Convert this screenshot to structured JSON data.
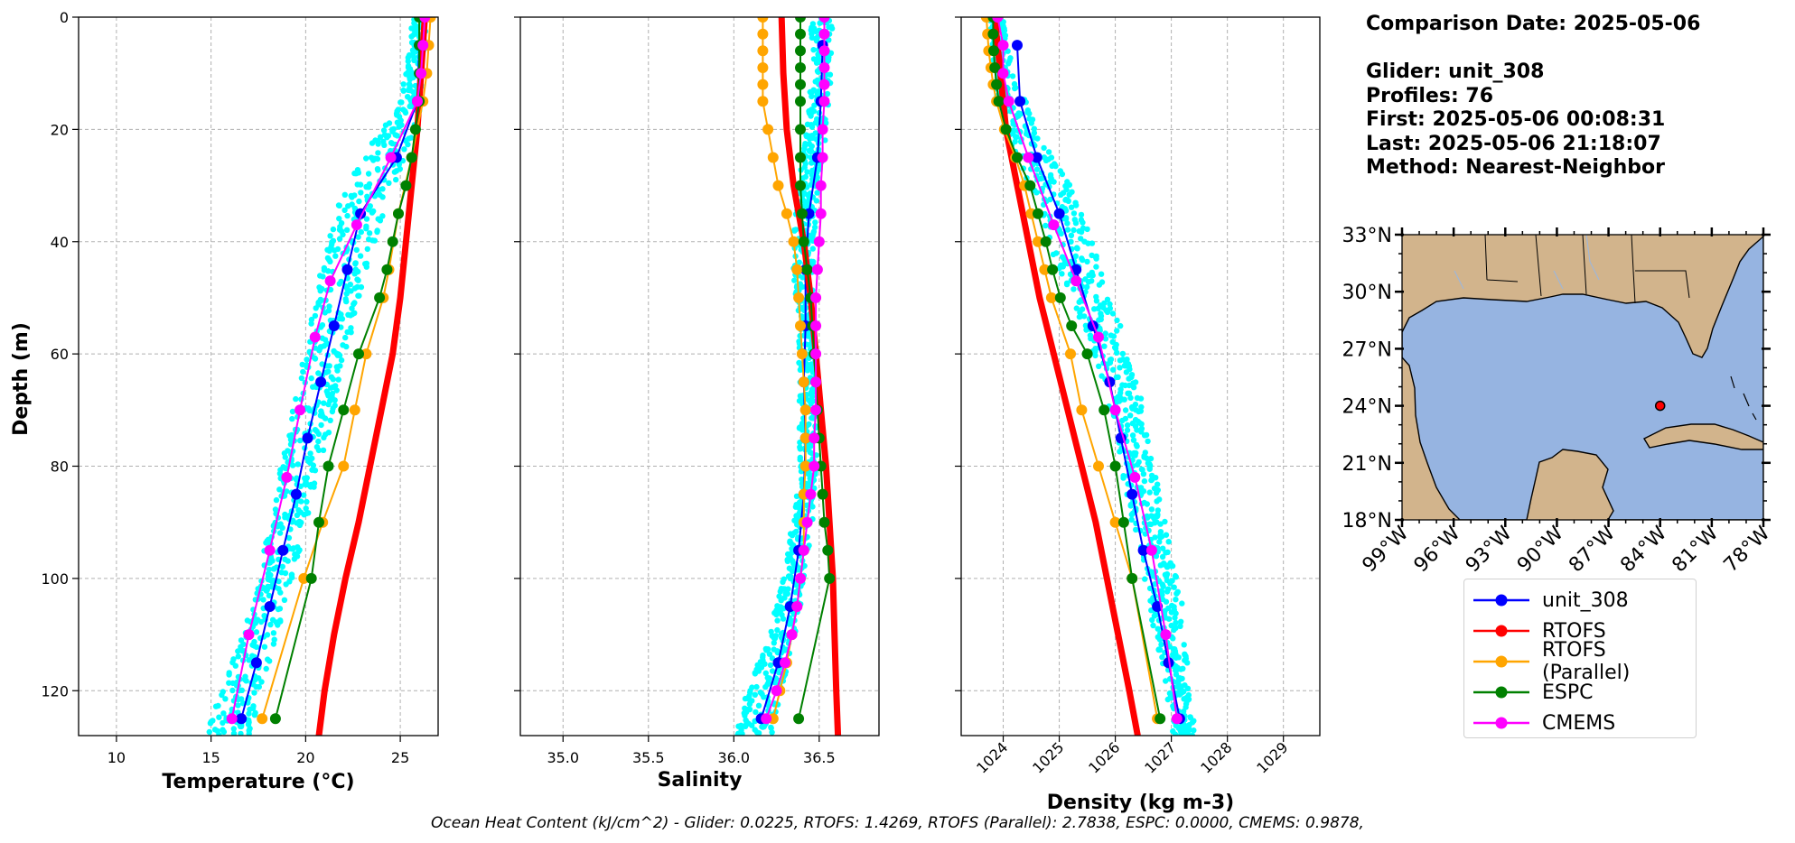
{
  "info": {
    "comparison": "Comparison Date: 2025-05-06",
    "glider": "Glider: unit_308",
    "profiles": "Profiles: 76",
    "first": "First: 2025-05-06 00:08:31",
    "last": "Last: 2025-05-06 21:18:07",
    "method": "Method: Nearest-Neighbor"
  },
  "footer": "Ocean Heat Content (kJ/cm^2) - Glider: 0.0225,  RTOFS: 1.4269,  RTOFS (Parallel): 2.7838,  ESPC: 0.0000,  CMEMS: 0.9878,",
  "colors": {
    "glider": "#0000ff",
    "rtofs": "#ff0000",
    "rtofs_parallel": "#ffa500",
    "espc": "#008000",
    "cmems": "#ff00ff",
    "scatter": "#00ffff",
    "land": "#d2b48c",
    "water": "#96b4e1",
    "grid": "#b0b0b0"
  },
  "legend": [
    {
      "label": "unit_308",
      "color": "#0000ff"
    },
    {
      "label": "RTOFS",
      "color": "#ff0000"
    },
    {
      "label": "RTOFS (Parallel)",
      "color": "#ffa500"
    },
    {
      "label": "ESPC",
      "color": "#008000"
    },
    {
      "label": "CMEMS",
      "color": "#ff00ff"
    }
  ],
  "chart_data": [
    {
      "type": "line",
      "title": "",
      "xlabel": "Temperature (°C)",
      "ylabel": "Depth (m)",
      "xlim": [
        8,
        27
      ],
      "ylim": [
        128,
        0
      ],
      "xticks": [
        10,
        15,
        20,
        25
      ],
      "yticks": [
        0,
        20,
        40,
        60,
        80,
        100,
        120
      ],
      "scatter": {
        "name": "glider raw",
        "color": "#00ffff",
        "depth": [
          0,
          5,
          10,
          15,
          20,
          25,
          30,
          35,
          40,
          45,
          50,
          55,
          60,
          65,
          70,
          75,
          80,
          85,
          90,
          95,
          100,
          105,
          110,
          115,
          120,
          125,
          128
        ],
        "min": [
          25.6,
          25.5,
          25.3,
          24.9,
          24.0,
          23.0,
          22.2,
          21.5,
          21.1,
          20.8,
          20.5,
          20.2,
          19.9,
          19.6,
          19.3,
          19.0,
          18.7,
          18.4,
          18.1,
          17.8,
          17.5,
          17.1,
          16.6,
          16.1,
          15.6,
          15.0,
          14.8
        ],
        "max": [
          26.4,
          26.3,
          26.2,
          26.1,
          25.9,
          25.3,
          24.8,
          24.2,
          23.7,
          23.3,
          22.9,
          22.5,
          22.1,
          21.8,
          21.5,
          21.2,
          20.8,
          20.4,
          20.1,
          19.7,
          19.3,
          18.9,
          18.5,
          18.1,
          17.7,
          17.3,
          17.1
        ]
      },
      "series": [
        {
          "name": "unit_308",
          "color": "#0000ff",
          "marker": true,
          "depth": [
            5,
            15,
            25,
            35,
            45,
            55,
            65,
            75,
            85,
            95,
            105,
            115,
            125
          ],
          "values": [
            26.0,
            25.9,
            24.8,
            22.9,
            22.2,
            21.5,
            20.8,
            20.1,
            19.5,
            18.8,
            18.1,
            17.4,
            16.6
          ]
        },
        {
          "name": "RTOFS",
          "color": "#ff0000",
          "marker": false,
          "width": 7,
          "depth": [
            0,
            10,
            20,
            30,
            40,
            50,
            60,
            70,
            80,
            90,
            100,
            110,
            120,
            128
          ],
          "values": [
            26.3,
            26.1,
            25.9,
            25.6,
            25.3,
            25.0,
            24.6,
            24.0,
            23.4,
            22.8,
            22.1,
            21.5,
            21.0,
            20.7
          ]
        },
        {
          "name": "RTOFS (Parallel)",
          "color": "#ffa500",
          "marker": true,
          "depth": [
            0,
            5,
            10,
            15,
            25,
            35,
            45,
            50,
            60,
            70,
            80,
            90,
            100,
            125
          ],
          "values": [
            26.6,
            26.5,
            26.4,
            26.2,
            25.6,
            24.9,
            24.4,
            24.1,
            23.2,
            22.6,
            22.0,
            20.9,
            19.9,
            17.7
          ]
        },
        {
          "name": "ESPC",
          "color": "#008000",
          "marker": true,
          "depth": [
            0,
            5,
            10,
            15,
            20,
            25,
            30,
            35,
            40,
            45,
            50,
            60,
            70,
            80,
            90,
            100,
            125
          ],
          "values": [
            26.0,
            26.0,
            26.0,
            26.0,
            25.8,
            25.6,
            25.3,
            24.9,
            24.6,
            24.3,
            23.9,
            22.8,
            22.0,
            21.2,
            20.7,
            20.3,
            18.4
          ]
        },
        {
          "name": "CMEMS",
          "color": "#ff00ff",
          "marker": true,
          "depth": [
            0,
            5,
            10,
            15,
            25,
            37,
            47,
            57,
            70,
            82,
            95,
            110,
            125
          ],
          "values": [
            26.3,
            26.2,
            26.1,
            25.9,
            24.5,
            22.7,
            21.3,
            20.5,
            19.7,
            19.0,
            18.1,
            17.0,
            16.1
          ]
        }
      ]
    },
    {
      "type": "line",
      "title": "",
      "xlabel": "Salinity",
      "ylabel": "",
      "xlim": [
        34.75,
        36.85
      ],
      "ylim": [
        128,
        0
      ],
      "xticks": [
        35.0,
        35.5,
        36.0,
        36.5
      ],
      "yticks": [
        0,
        20,
        40,
        60,
        80,
        100,
        120
      ],
      "scatter": {
        "name": "glider raw",
        "color": "#00ffff",
        "depth": [
          0,
          5,
          10,
          15,
          20,
          25,
          30,
          35,
          40,
          45,
          50,
          55,
          60,
          65,
          70,
          75,
          80,
          85,
          90,
          95,
          100,
          105,
          110,
          115,
          120,
          125,
          128
        ],
        "min": [
          36.45,
          36.45,
          36.46,
          36.44,
          36.42,
          36.4,
          36.38,
          36.36,
          36.35,
          36.35,
          36.36,
          36.37,
          36.38,
          36.38,
          36.38,
          36.38,
          36.38,
          36.36,
          36.34,
          36.32,
          36.28,
          36.24,
          36.2,
          36.14,
          36.08,
          36.02,
          36.0
        ],
        "max": [
          36.58,
          36.58,
          36.57,
          36.56,
          36.55,
          36.53,
          36.5,
          36.48,
          36.47,
          36.47,
          36.47,
          36.47,
          36.48,
          36.48,
          36.49,
          36.49,
          36.48,
          36.47,
          36.46,
          36.44,
          36.41,
          36.39,
          36.36,
          36.32,
          36.28,
          36.24,
          36.22
        ]
      },
      "series": [
        {
          "name": "unit_308",
          "color": "#0000ff",
          "marker": true,
          "depth": [
            5,
            15,
            25,
            35,
            45,
            55,
            65,
            75,
            85,
            95,
            105,
            115,
            125
          ],
          "values": [
            36.52,
            36.51,
            36.49,
            36.44,
            36.42,
            36.42,
            36.41,
            36.42,
            36.41,
            36.38,
            36.33,
            36.26,
            36.16
          ]
        },
        {
          "name": "RTOFS",
          "color": "#ff0000",
          "marker": false,
          "width": 7,
          "depth": [
            0,
            10,
            20,
            30,
            40,
            50,
            60,
            70,
            80,
            90,
            100,
            110,
            120,
            128
          ],
          "values": [
            36.28,
            36.29,
            36.31,
            36.35,
            36.41,
            36.45,
            36.48,
            36.51,
            36.54,
            36.56,
            36.58,
            36.59,
            36.6,
            36.61
          ]
        },
        {
          "name": "RTOFS (Parallel)",
          "color": "#ffa500",
          "marker": true,
          "depth": [
            0,
            3,
            6,
            9,
            12,
            15,
            20,
            25,
            30,
            35,
            40,
            45,
            50,
            55,
            60,
            65,
            70,
            75,
            80,
            85,
            90,
            95,
            100,
            105,
            110,
            115,
            120,
            125
          ],
          "values": [
            36.17,
            36.17,
            36.17,
            36.17,
            36.17,
            36.17,
            36.2,
            36.23,
            36.26,
            36.31,
            36.35,
            36.37,
            36.38,
            36.39,
            36.4,
            36.41,
            36.42,
            36.42,
            36.42,
            36.41,
            36.41,
            36.41,
            36.39,
            36.37,
            36.34,
            36.31,
            36.27,
            36.23
          ]
        },
        {
          "name": "ESPC",
          "color": "#008000",
          "marker": true,
          "depth": [
            0,
            3,
            6,
            9,
            12,
            15,
            20,
            25,
            30,
            35,
            40,
            45,
            50,
            55,
            60,
            65,
            70,
            75,
            80,
            85,
            90,
            95,
            100,
            125
          ],
          "values": [
            36.39,
            36.39,
            36.39,
            36.39,
            36.39,
            36.39,
            36.39,
            36.39,
            36.39,
            36.4,
            36.41,
            36.43,
            36.45,
            36.46,
            36.47,
            36.48,
            36.49,
            36.5,
            36.51,
            36.52,
            36.53,
            36.55,
            36.56,
            36.38
          ]
        },
        {
          "name": "CMEMS",
          "color": "#ff00ff",
          "marker": true,
          "depth": [
            0,
            3,
            6,
            9,
            12,
            15,
            20,
            25,
            30,
            35,
            40,
            45,
            50,
            55,
            60,
            65,
            70,
            75,
            80,
            85,
            90,
            95,
            100,
            105,
            110,
            115,
            120,
            125
          ],
          "values": [
            36.53,
            36.53,
            36.53,
            36.53,
            36.53,
            36.53,
            36.52,
            36.52,
            36.51,
            36.51,
            36.5,
            36.49,
            36.48,
            36.48,
            36.48,
            36.48,
            36.48,
            36.47,
            36.47,
            36.45,
            36.43,
            36.41,
            36.39,
            36.37,
            36.34,
            36.3,
            36.25,
            36.19
          ]
        }
      ]
    },
    {
      "type": "line",
      "title": "",
      "xlabel": "Density (kg m-3)",
      "ylabel": "",
      "xlim": [
        1023.25,
        1029.65
      ],
      "ylim": [
        128,
        0
      ],
      "xticks": [
        1024,
        1025,
        1026,
        1027,
        1028,
        1029
      ],
      "yticks": [
        0,
        20,
        40,
        60,
        80,
        100,
        120
      ],
      "scatter": {
        "name": "glider raw",
        "color": "#00ffff",
        "depth": [
          0,
          5,
          10,
          15,
          20,
          25,
          30,
          35,
          40,
          45,
          50,
          55,
          60,
          65,
          70,
          75,
          80,
          85,
          90,
          95,
          100,
          105,
          110,
          115,
          120,
          125,
          128
        ],
        "min": [
          1023.7,
          1023.8,
          1023.8,
          1023.9,
          1024.0,
          1024.2,
          1024.4,
          1024.6,
          1024.8,
          1025.0,
          1025.2,
          1025.4,
          1025.6,
          1025.8,
          1025.9,
          1026.0,
          1026.1,
          1026.2,
          1026.3,
          1026.4,
          1026.5,
          1026.6,
          1026.7,
          1026.8,
          1026.9,
          1027.0,
          1027.0
        ],
        "max": [
          1024.0,
          1024.1,
          1024.2,
          1024.4,
          1024.6,
          1024.9,
          1025.2,
          1025.4,
          1025.6,
          1025.8,
          1025.9,
          1026.1,
          1026.2,
          1026.4,
          1026.5,
          1026.6,
          1026.7,
          1026.8,
          1026.9,
          1027.0,
          1027.1,
          1027.2,
          1027.2,
          1027.3,
          1027.3,
          1027.4,
          1027.4
        ]
      },
      "series": [
        {
          "name": "unit_308",
          "color": "#0000ff",
          "marker": true,
          "depth": [
            5,
            15,
            25,
            35,
            45,
            55,
            65,
            75,
            85,
            95,
            105,
            115,
            125
          ],
          "values": [
            1024.25,
            1024.3,
            1024.6,
            1025.0,
            1025.3,
            1025.6,
            1025.9,
            1026.1,
            1026.3,
            1026.5,
            1026.75,
            1026.95,
            1027.15
          ]
        },
        {
          "name": "RTOFS",
          "color": "#ff0000",
          "marker": false,
          "width": 7,
          "depth": [
            0,
            10,
            20,
            30,
            40,
            50,
            60,
            70,
            80,
            90,
            100,
            110,
            120,
            128
          ],
          "values": [
            1023.85,
            1023.95,
            1024.05,
            1024.25,
            1024.45,
            1024.65,
            1024.9,
            1025.15,
            1025.4,
            1025.65,
            1025.85,
            1026.05,
            1026.25,
            1026.4
          ]
        },
        {
          "name": "RTOFS (Parallel)",
          "color": "#ffa500",
          "marker": true,
          "depth": [
            0,
            3,
            6,
            9,
            12,
            15,
            20,
            25,
            30,
            35,
            40,
            45,
            50,
            60,
            70,
            80,
            90,
            100,
            125
          ],
          "values": [
            1023.7,
            1023.72,
            1023.74,
            1023.78,
            1023.82,
            1023.88,
            1024.02,
            1024.22,
            1024.38,
            1024.5,
            1024.62,
            1024.74,
            1024.86,
            1025.2,
            1025.4,
            1025.7,
            1026.0,
            1026.3,
            1026.75
          ]
        },
        {
          "name": "ESPC",
          "color": "#008000",
          "marker": true,
          "depth": [
            0,
            3,
            6,
            9,
            12,
            15,
            20,
            25,
            30,
            35,
            40,
            45,
            50,
            55,
            60,
            70,
            80,
            90,
            100,
            125
          ],
          "values": [
            1023.82,
            1023.82,
            1023.83,
            1023.85,
            1023.88,
            1023.92,
            1024.05,
            1024.25,
            1024.48,
            1024.62,
            1024.76,
            1024.88,
            1025.02,
            1025.22,
            1025.5,
            1025.8,
            1026.0,
            1026.15,
            1026.3,
            1026.8
          ]
        },
        {
          "name": "CMEMS",
          "color": "#ff00ff",
          "marker": true,
          "depth": [
            0,
            5,
            10,
            15,
            25,
            37,
            47,
            57,
            70,
            82,
            95,
            110,
            125
          ],
          "values": [
            1023.9,
            1024.0,
            1024.0,
            1024.1,
            1024.45,
            1024.9,
            1025.3,
            1025.7,
            1026.0,
            1026.35,
            1026.65,
            1026.9,
            1027.1
          ]
        }
      ]
    }
  ],
  "map": {
    "lat_labels": [
      "33°N",
      "30°N",
      "27°N",
      "24°N",
      "21°N",
      "18°N"
    ],
    "lon_labels": [
      "99°W",
      "96°W",
      "93°W",
      "90°W",
      "87°W",
      "84°W",
      "81°W",
      "78°W"
    ],
    "lat_range": [
      18,
      33
    ],
    "lon_range": [
      -99,
      -78
    ],
    "glider_location": {
      "lon": -84.0,
      "lat": 24.0
    }
  }
}
